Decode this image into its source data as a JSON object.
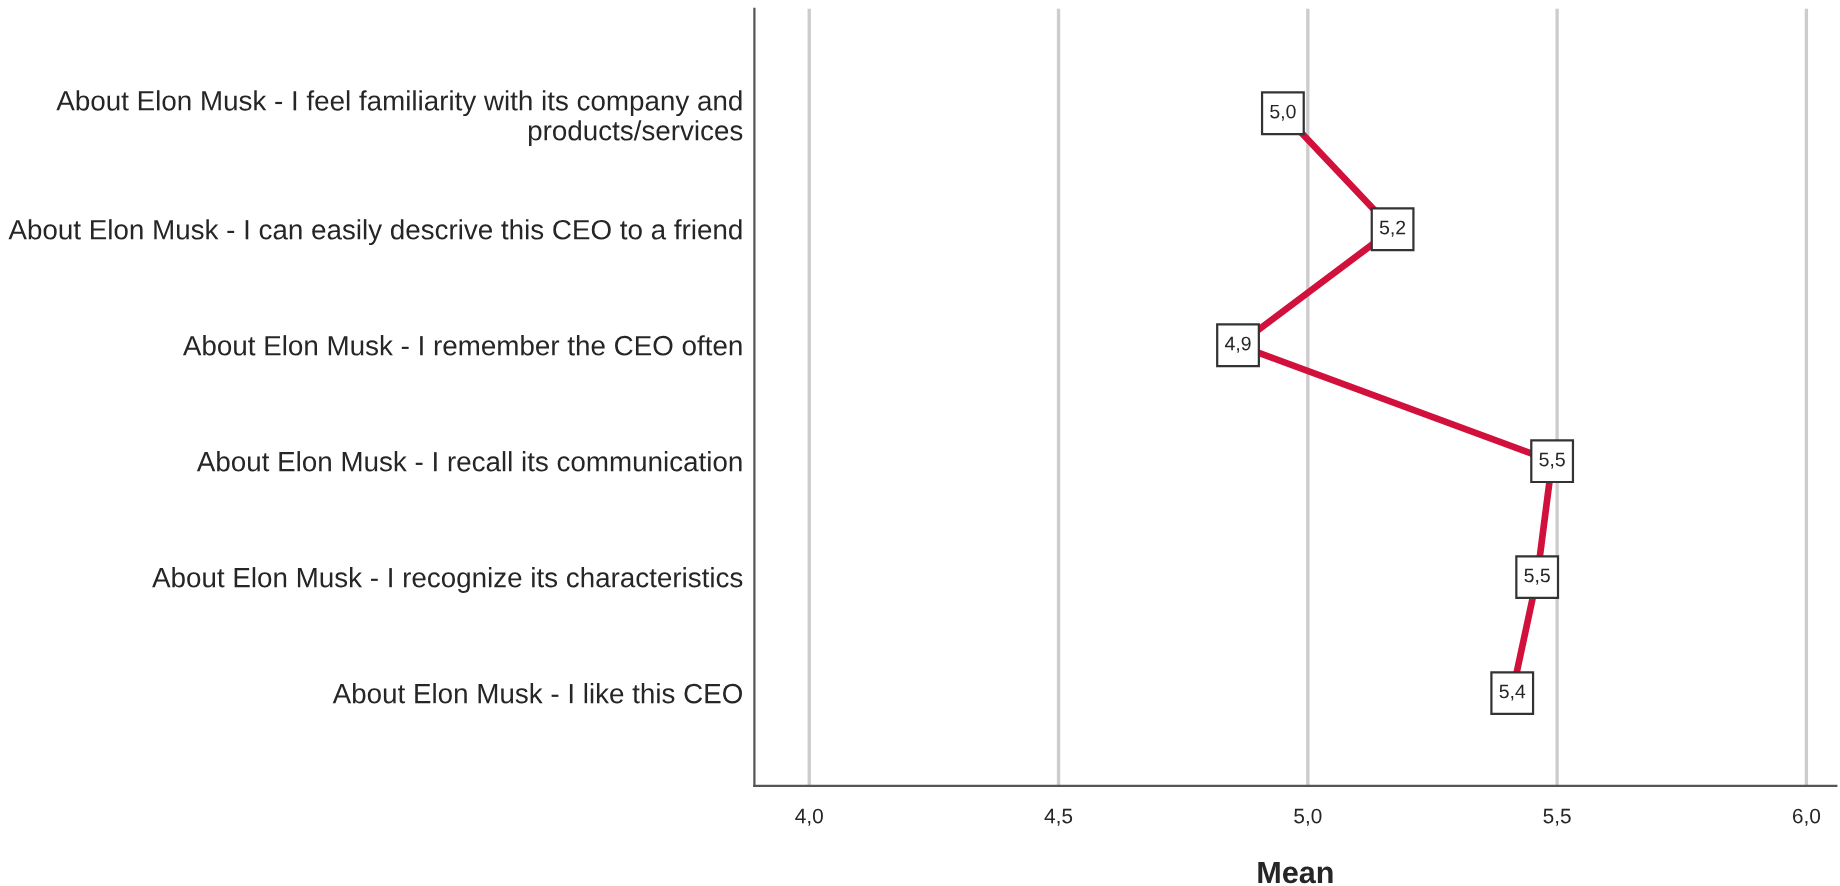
{
  "chart_data": {
    "type": "line",
    "orientation": "horizontal",
    "categories": [
      "About Elon Musk - I feel familiarity with its company and\nproducts/services",
      "About Elon Musk - I can easily descrive this CEO to a friend",
      "About Elon Musk - I remember the CEO often",
      "About Elon Musk - I recall its communication",
      "About Elon Musk - I recognize its characteristics",
      "About Elon Musk - I like this CEO"
    ],
    "series": [
      {
        "color": "#d2103c",
        "values": [
          4.95,
          5.17,
          4.86,
          5.49,
          5.46,
          5.41
        ],
        "value_labels": [
          "5,0",
          "5,2",
          "4,9",
          "5,5",
          "5,5",
          "5,4"
        ]
      }
    ],
    "xlabel": "Mean",
    "xlim": [
      3.89,
      6.06
    ],
    "xticks": [
      {
        "value": 4.0,
        "label": "4,0"
      },
      {
        "value": 4.5,
        "label": "4,5"
      },
      {
        "value": 5.0,
        "label": "5,0"
      },
      {
        "value": 5.5,
        "label": "5,5"
      },
      {
        "value": 6.0,
        "label": "6,0"
      }
    ],
    "grid": "x",
    "marker": "square",
    "line_style": "solid"
  }
}
